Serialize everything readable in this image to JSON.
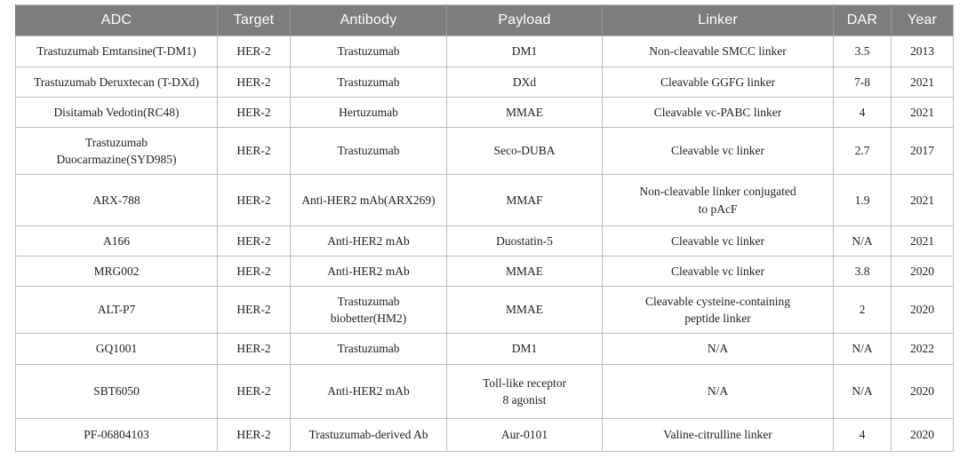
{
  "table": {
    "columns": [
      "ADC",
      "Target",
      "Antibody",
      "Payload",
      "Linker",
      "DAR",
      "Year"
    ],
    "rows": [
      [
        "Trastuzumab Emtansine(T-DM1)",
        "HER-2",
        "Trastuzumab",
        "DM1",
        "Non-cleavable SMCC linker",
        "3.5",
        "2013"
      ],
      [
        "Trastuzumab Deruxtecan (T-DXd)",
        "HER-2",
        "Trastuzumab",
        "DXd",
        "Cleavable GGFG linker",
        "7-8",
        "2021"
      ],
      [
        "Disitamab Vedotin(RC48)",
        "HER-2",
        "Hertuzumab",
        "MMAE",
        "Cleavable vc-PABC linker",
        "4",
        "2021"
      ],
      [
        "Trastuzumab\nDuocarmazine(SYD985)",
        "HER-2",
        "Trastuzumab",
        "Seco-DUBA",
        "Cleavable vc linker",
        "2.7",
        "2017"
      ],
      [
        "ARX-788",
        "HER-2",
        "Anti-HER2 mAb(ARX269)",
        "MMAF",
        "Non-cleavable linker conjugated\nto pAcF",
        "1.9",
        "2021"
      ],
      [
        "A166",
        "HER-2",
        "Anti-HER2 mAb",
        "Duostatin-5",
        "Cleavable vc linker",
        "N/A",
        "2021"
      ],
      [
        "MRG002",
        "HER-2",
        "Anti-HER2 mAb",
        "MMAE",
        "Cleavable vc linker",
        "3.8",
        "2020"
      ],
      [
        "ALT-P7",
        "HER-2",
        "Trastuzumab\nbiobetter(HM2)",
        "MMAE",
        "Cleavable cysteine-containing\npeptide linker",
        "2",
        "2020"
      ],
      [
        "GQ1001",
        "HER-2",
        "Trastuzumab",
        "DM1",
        "N/A",
        "N/A",
        "2022"
      ],
      [
        "SBT6050",
        "HER-2",
        "Anti-HER2 mAb",
        "Toll-like receptor\n8 agonist",
        "N/A",
        "N/A",
        "2020"
      ],
      [
        "PF-06804103",
        "HER-2",
        "Trastuzumab-derived Ab",
        "Aur-0101",
        "Valine-citrulline linker",
        "4",
        "2020"
      ]
    ],
    "header_bg_color": "#7d7d7d",
    "header_text_color": "#ffffff",
    "border_color": "#bcbcbc",
    "body_text_color": "#1f1f1f"
  }
}
